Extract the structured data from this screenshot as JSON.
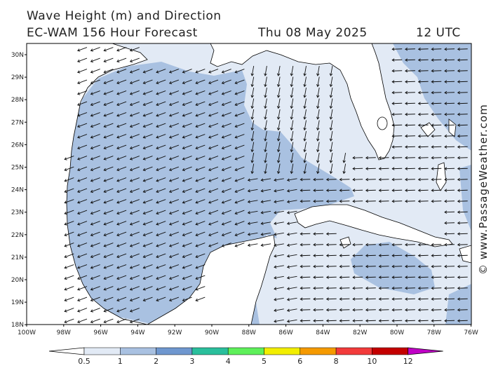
{
  "title": {
    "line1": "Wave Height (m) and Direction",
    "line2": "EC-WAM 156 Hour Forecast",
    "date": "Thu 08 May 2025",
    "time": "12 UTC"
  },
  "map": {
    "lat_labels": [
      "30N",
      "29N",
      "28N",
      "27N",
      "26N",
      "25N",
      "24N",
      "23N",
      "22N",
      "21N",
      "20N",
      "19N",
      "18N"
    ],
    "lon_labels": [
      "100W",
      "98W",
      "96W",
      "94W",
      "92W",
      "90W",
      "88W",
      "86W",
      "84W",
      "82W",
      "80W",
      "78W",
      "76W"
    ],
    "land_color": "#ffffff",
    "coast_color": "#000000"
  },
  "legend": {
    "colors": [
      "#e2eaf5",
      "#a9c1e1",
      "#6f97cf",
      "#2abf9c",
      "#5ef05a",
      "#f2ee00",
      "#f59a00",
      "#f23b3b",
      "#c40000",
      "#c000c6"
    ],
    "ticks": [
      "0.5",
      "1",
      "2",
      "3",
      "4",
      "5",
      "6",
      "8",
      "10",
      "12"
    ]
  },
  "credit": "© www.PassageWeather.com"
}
